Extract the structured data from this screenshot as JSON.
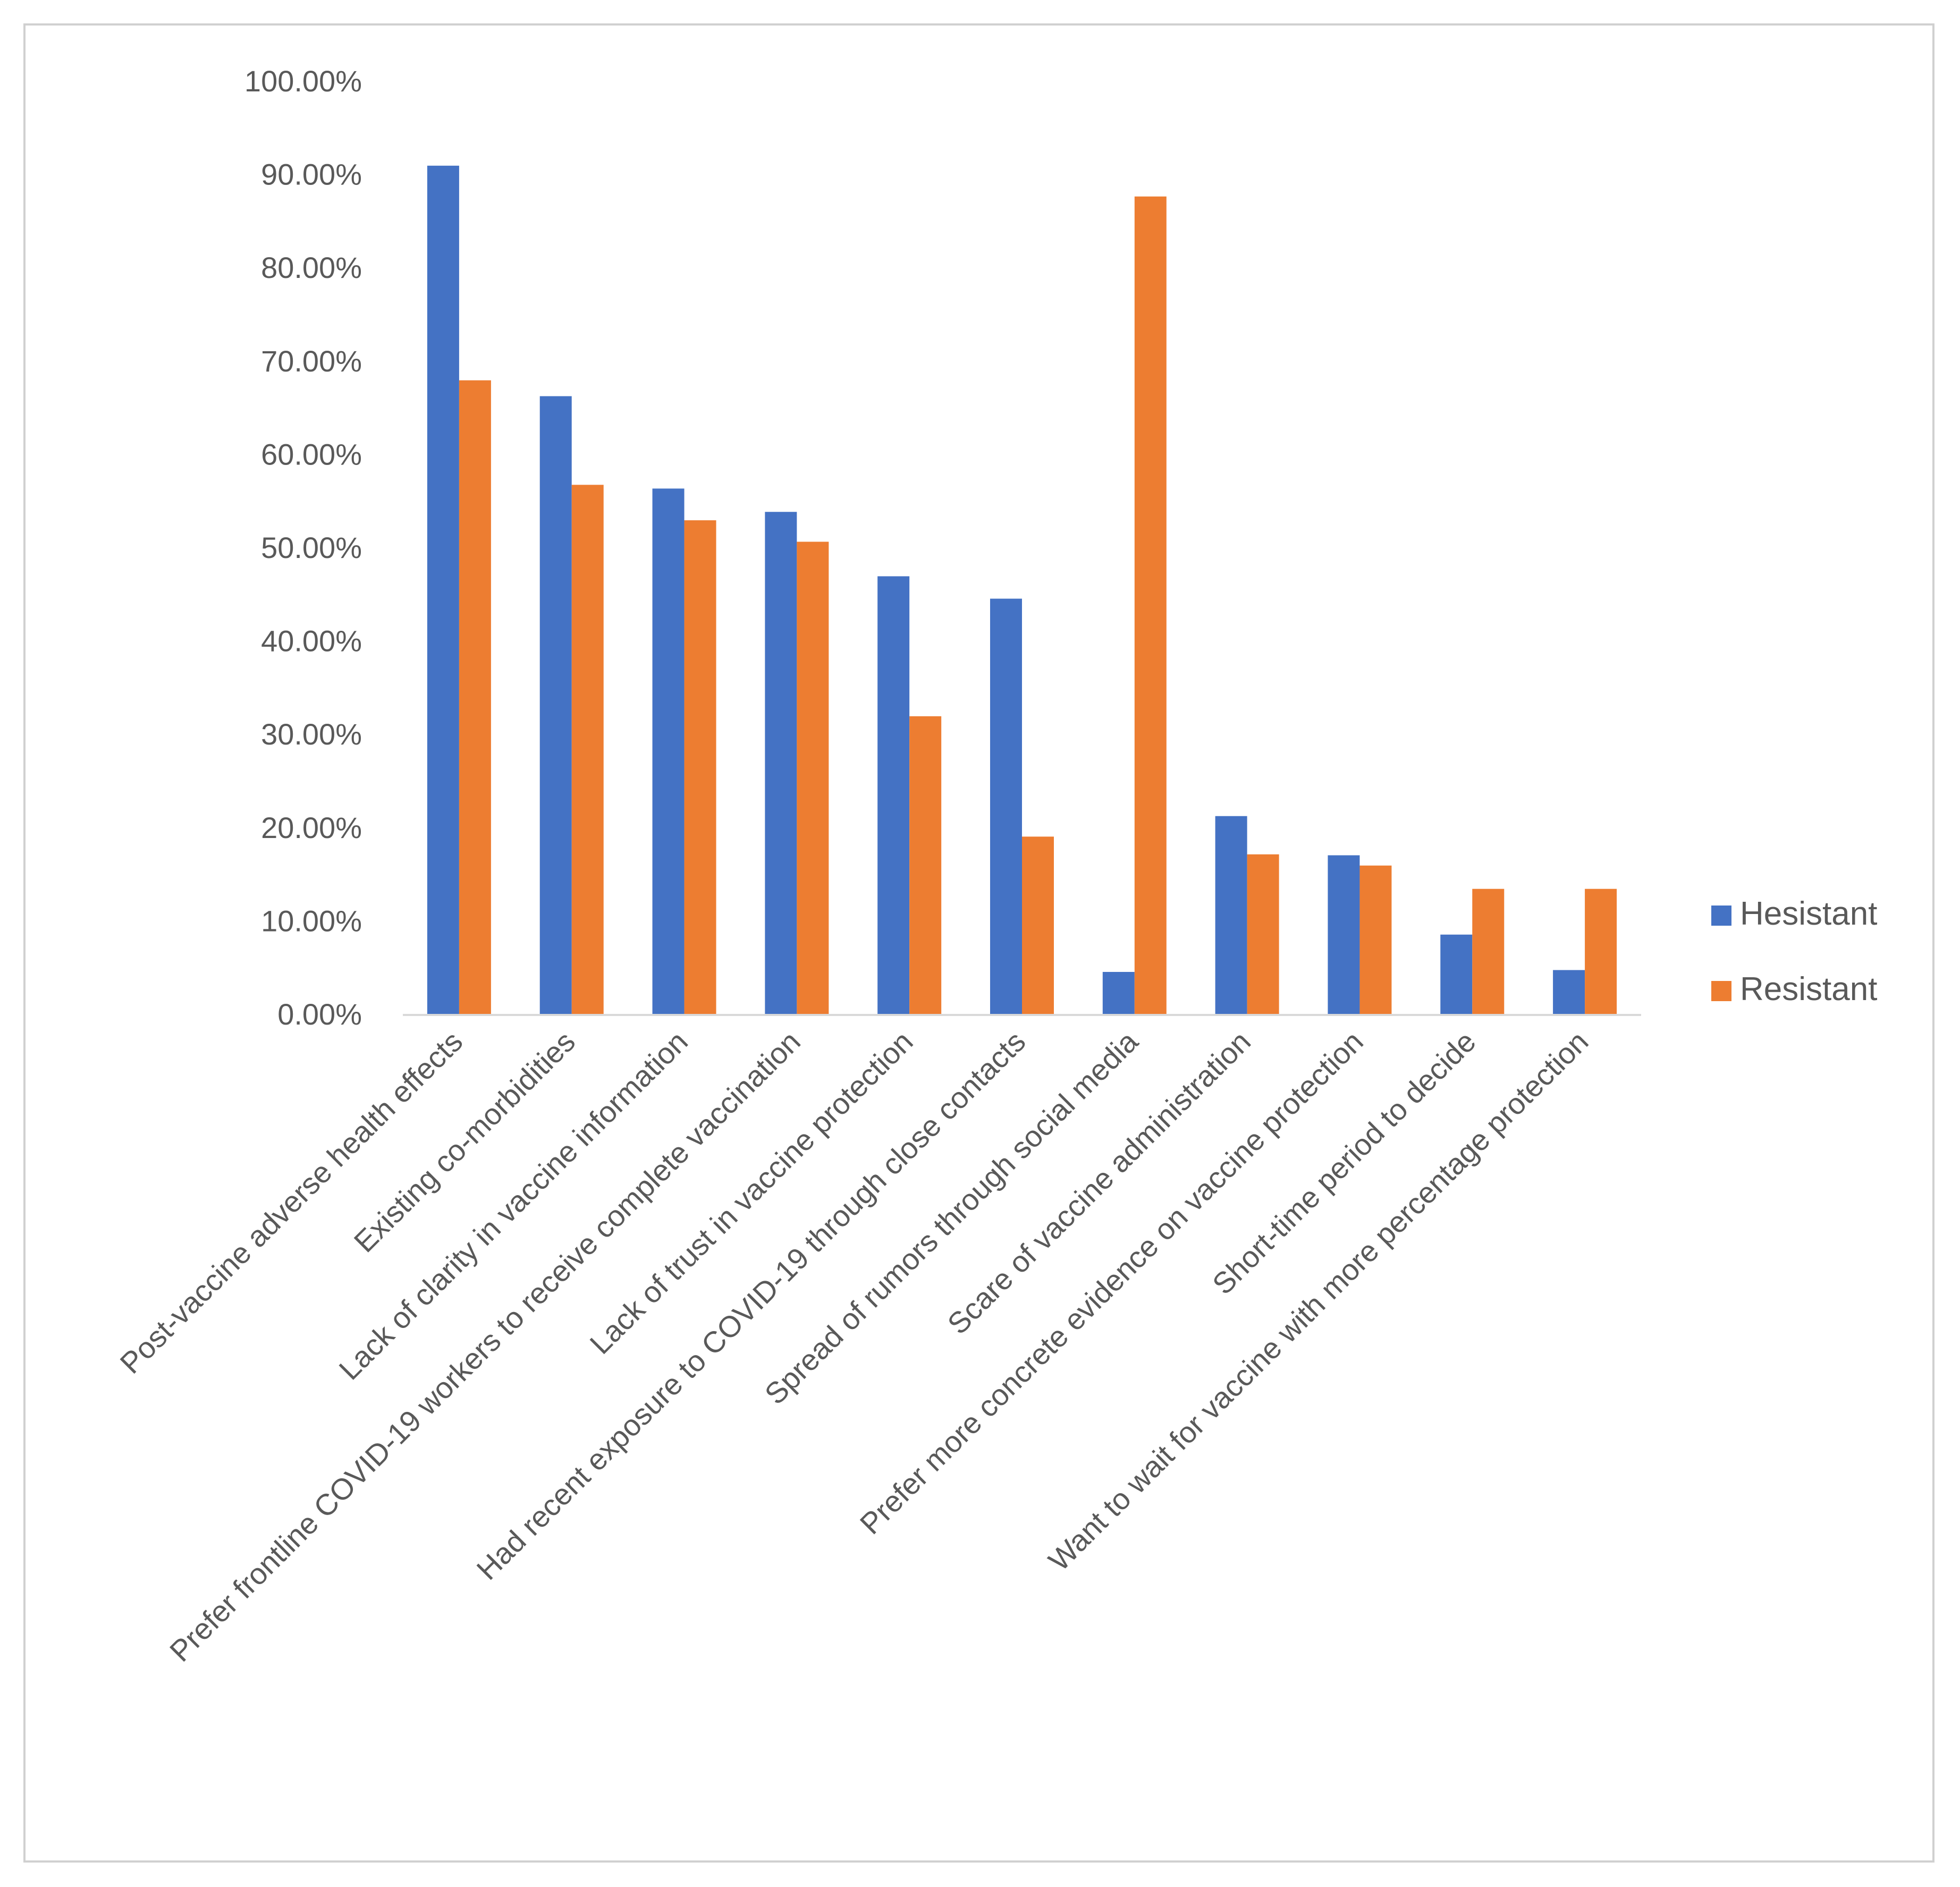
{
  "chart_data": {
    "type": "bar",
    "title": "",
    "xlabel": "",
    "ylabel": "",
    "ylim": [
      0,
      100
    ],
    "y_ticks": [
      "0.00%",
      "10.00%",
      "20.00%",
      "30.00%",
      "40.00%",
      "50.00%",
      "60.00%",
      "70.00%",
      "80.00%",
      "90.00%",
      "100.00%"
    ],
    "grid": false,
    "legend_position": "right",
    "categories": [
      "Post-vaccine adverse health effects",
      "Existing co-morbidities",
      "Lack of clarity in vaccine information",
      "Prefer frontline COVID-19 workers to receive complete vaccination",
      "Lack of trust in vaccine protection",
      "Had recent exposure to COVID-19 through close contacts",
      "Spread of rumors through social media",
      "Scare of vaccine administration",
      "Prefer more concrete evidence on vaccine protection",
      "Short-time period to decide",
      "Want to wait for vaccine with more percentage protection"
    ],
    "series": [
      {
        "name": "Hesistant",
        "color": "#4472c4",
        "values": [
          90.9,
          66.2,
          56.3,
          53.8,
          46.9,
          44.5,
          4.5,
          21.2,
          17.0,
          8.5,
          4.7
        ]
      },
      {
        "name": "Resistant",
        "color": "#ed7d31",
        "values": [
          67.9,
          56.7,
          52.9,
          50.6,
          31.9,
          19.0,
          87.6,
          17.1,
          15.9,
          13.4,
          13.4
        ]
      }
    ]
  }
}
